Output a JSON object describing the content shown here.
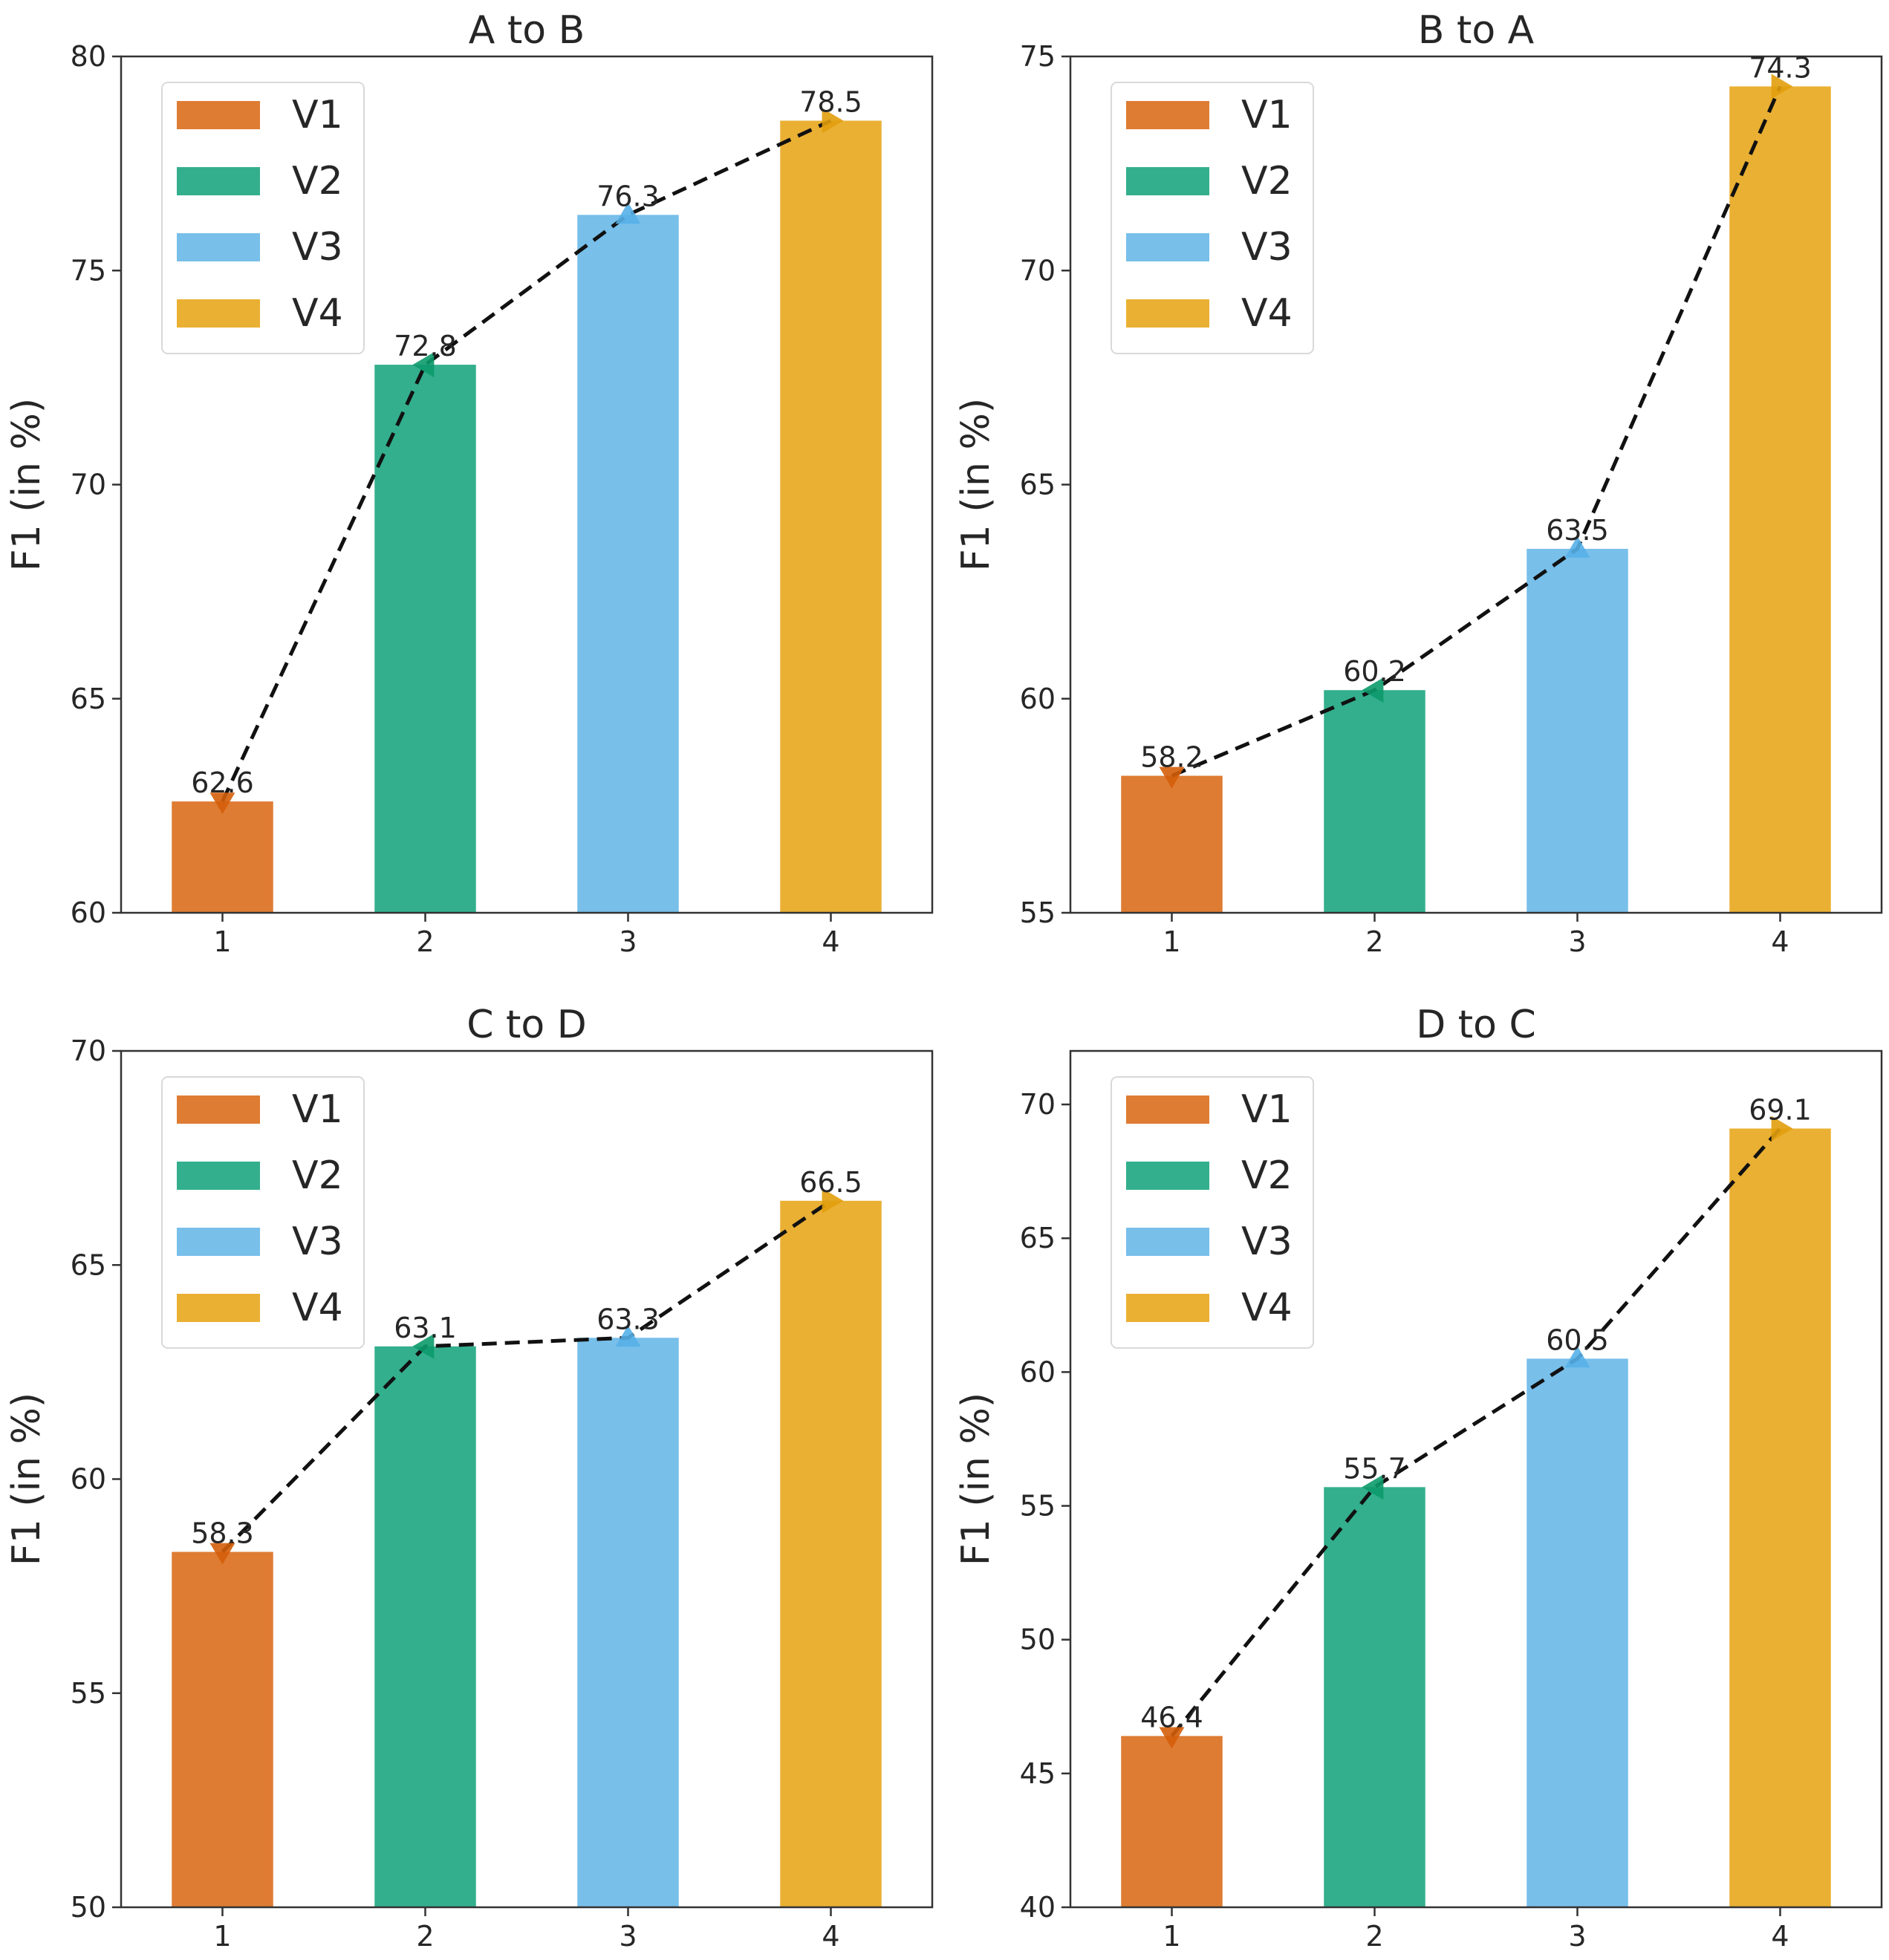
{
  "chart_data": [
    {
      "type": "bar",
      "title": "A to B",
      "xlabel": "",
      "ylabel": "F1 (in %)",
      "categories": [
        "1",
        "2",
        "3",
        "4"
      ],
      "series": [
        {
          "name": "V1",
          "values": [
            62.6,
            null,
            null,
            null
          ]
        },
        {
          "name": "V2",
          "values": [
            null,
            72.8,
            null,
            null
          ]
        },
        {
          "name": "V3",
          "values": [
            null,
            null,
            76.3,
            null
          ]
        },
        {
          "name": "V4",
          "values": [
            null,
            null,
            null,
            78.5
          ]
        }
      ],
      "values": [
        62.6,
        72.8,
        76.3,
        78.5
      ],
      "value_labels": [
        "62.6",
        "72.8",
        "76.3",
        "78.5"
      ],
      "ylim": [
        60,
        80
      ],
      "yticks": [
        60,
        65,
        70,
        75,
        80
      ],
      "ytick_labels": [
        "60",
        "65",
        "70",
        "75",
        "80"
      ],
      "grid": false,
      "legend": {
        "position": "top-left",
        "entries": [
          "V1",
          "V2",
          "V3",
          "V4"
        ]
      },
      "overlay": "dashed line connecting bar tops with triangle markers"
    },
    {
      "type": "bar",
      "title": "B to A",
      "xlabel": "",
      "ylabel": "F1 (in %)",
      "categories": [
        "1",
        "2",
        "3",
        "4"
      ],
      "series": [
        {
          "name": "V1",
          "values": [
            58.2,
            null,
            null,
            null
          ]
        },
        {
          "name": "V2",
          "values": [
            null,
            60.2,
            null,
            null
          ]
        },
        {
          "name": "V3",
          "values": [
            null,
            null,
            63.5,
            null
          ]
        },
        {
          "name": "V4",
          "values": [
            null,
            null,
            null,
            74.3
          ]
        }
      ],
      "values": [
        58.2,
        60.2,
        63.5,
        74.3
      ],
      "value_labels": [
        "58.2",
        "60.2",
        "63.5",
        "74.3"
      ],
      "ylim": [
        55,
        75
      ],
      "yticks": [
        55,
        60,
        65,
        70,
        75
      ],
      "ytick_labels": [
        "55",
        "60",
        "65",
        "70",
        "75"
      ],
      "grid": false,
      "legend": {
        "position": "top-left",
        "entries": [
          "V1",
          "V2",
          "V3",
          "V4"
        ]
      },
      "overlay": "dashed line connecting bar tops with triangle markers"
    },
    {
      "type": "bar",
      "title": "C to D",
      "xlabel": "",
      "ylabel": "F1 (in %)",
      "categories": [
        "1",
        "2",
        "3",
        "4"
      ],
      "series": [
        {
          "name": "V1",
          "values": [
            58.3,
            null,
            null,
            null
          ]
        },
        {
          "name": "V2",
          "values": [
            null,
            63.1,
            null,
            null
          ]
        },
        {
          "name": "V3",
          "values": [
            null,
            null,
            63.3,
            null
          ]
        },
        {
          "name": "V4",
          "values": [
            null,
            null,
            null,
            66.5
          ]
        }
      ],
      "values": [
        58.3,
        63.1,
        63.3,
        66.5
      ],
      "value_labels": [
        "58.3",
        "63.1",
        "63.3",
        "66.5"
      ],
      "ylim": [
        50,
        70
      ],
      "yticks": [
        50,
        55,
        60,
        65,
        70
      ],
      "ytick_labels": [
        "50",
        "55",
        "60",
        "65",
        "70"
      ],
      "grid": false,
      "legend": {
        "position": "top-left",
        "entries": [
          "V1",
          "V2",
          "V3",
          "V4"
        ]
      },
      "overlay": "dashed line connecting bar tops with triangle markers"
    },
    {
      "type": "bar",
      "title": "D to C",
      "xlabel": "",
      "ylabel": "F1 (in %)",
      "categories": [
        "1",
        "2",
        "3",
        "4"
      ],
      "series": [
        {
          "name": "V1",
          "values": [
            46.4,
            null,
            null,
            null
          ]
        },
        {
          "name": "V2",
          "values": [
            null,
            55.7,
            null,
            null
          ]
        },
        {
          "name": "V3",
          "values": [
            null,
            null,
            60.5,
            null
          ]
        },
        {
          "name": "V4",
          "values": [
            null,
            null,
            null,
            69.1
          ]
        }
      ],
      "values": [
        46.4,
        55.7,
        60.5,
        69.1
      ],
      "value_labels": [
        "46.4",
        "55.7",
        "60.5",
        "69.1"
      ],
      "ylim": [
        40,
        72
      ],
      "yticks": [
        40,
        45,
        50,
        55,
        60,
        65,
        70
      ],
      "ytick_labels": [
        "40",
        "45",
        "50",
        "55",
        "60",
        "65",
        "70"
      ],
      "grid": false,
      "legend": {
        "position": "top-left",
        "entries": [
          "V1",
          "V2",
          "V3",
          "V4"
        ]
      },
      "overlay": "dashed line connecting bar tops with triangle markers"
    }
  ],
  "colors": {
    "V1": "#DE7C33",
    "V2": "#33AF8D",
    "V3": "#78BFEA",
    "V4": "#EAB033",
    "V1_marker": "#D45E0A",
    "V2_marker": "#0C9A6A",
    "V3_marker": "#56B0E8",
    "V4_marker": "#E29E0D",
    "line": "#111111",
    "axis": "#333333"
  },
  "markers": [
    "triangle-down",
    "triangle-left",
    "triangle-up",
    "triangle-right"
  ]
}
